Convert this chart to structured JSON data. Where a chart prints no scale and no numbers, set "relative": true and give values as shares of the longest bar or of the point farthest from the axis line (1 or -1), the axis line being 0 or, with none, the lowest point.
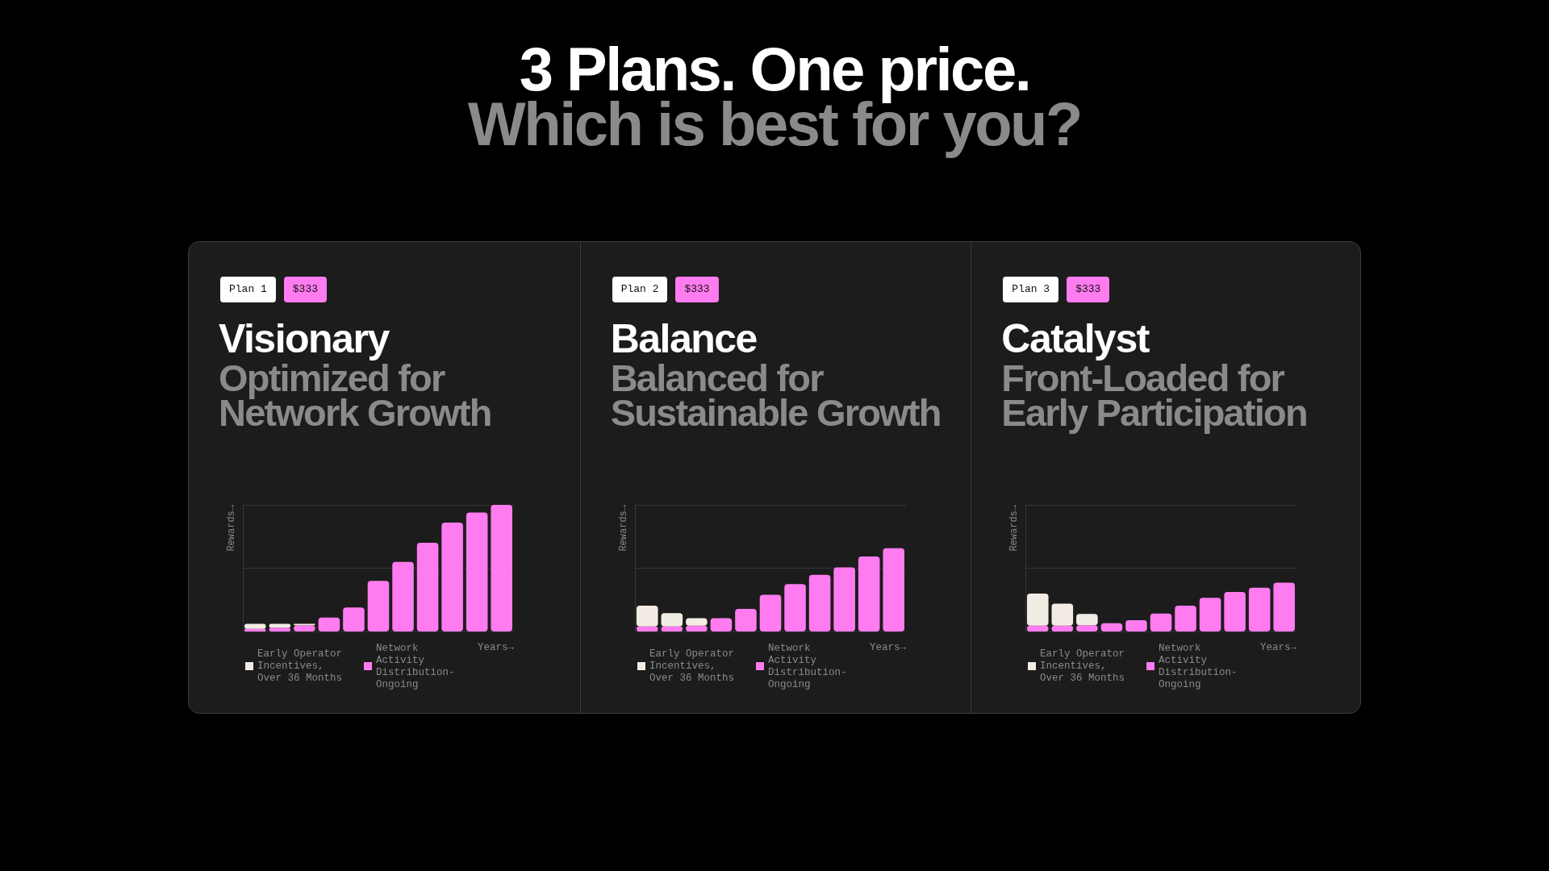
{
  "chart_data": [
    {
      "type": "bar",
      "title": "Visionary",
      "subtitle": "Optimized for Network Growth",
      "xlabel": "Years→",
      "ylabel": "Rewards→",
      "annotations": [
        "3 Plans. One price.",
        "Which is best for you?",
        "Plan 1",
        "$333"
      ],
      "categories": [
        null,
        null,
        null,
        null,
        null,
        null,
        null,
        null,
        null,
        null,
        null
      ],
      "stacked": true,
      "relative": true,
      "legend": "bottom",
      "ref_lines": [
        {
          "axis": "y",
          "value": 0.5,
          "color": "#363636"
        },
        {
          "axis": "y",
          "value": 1.0,
          "color": "#363636"
        }
      ],
      "series": [
        {
          "name": "Network Activity Distribution-Ongoing",
          "color": "#ff7bf0",
          "values": [
            0.02,
            0.03,
            0.05,
            0.11,
            0.19,
            0.4,
            0.55,
            0.7,
            0.86,
            0.94,
            1.0
          ]
        },
        {
          "name": "Early Operator Incentives, Over 36 Months",
          "color": "#f3ece4",
          "values": [
            0.04,
            0.03,
            0.01,
            null,
            null,
            null,
            null,
            null,
            null,
            null,
            null
          ]
        }
      ]
    },
    {
      "type": "bar",
      "title": "Balance",
      "subtitle": "Balanced for Sustainable Growth",
      "xlabel": "Years→",
      "ylabel": "Rewards→",
      "annotations": [
        "Plan 2",
        "$333"
      ],
      "categories": [
        null,
        null,
        null,
        null,
        null,
        null,
        null,
        null,
        null,
        null,
        null
      ],
      "stacked": true,
      "relative": true,
      "legend": "bottom",
      "ref_lines": [
        {
          "axis": "y",
          "value": 0.76,
          "color": "#363636"
        },
        {
          "axis": "y",
          "value": 1.52,
          "color": "#363636"
        }
      ],
      "series": [
        {
          "name": "Network Activity Distribution-Ongoing",
          "color": "#ff7bf0",
          "values": [
            0.06,
            0.06,
            0.07,
            0.16,
            0.27,
            0.44,
            0.57,
            0.68,
            0.77,
            0.9,
            1.0
          ]
        },
        {
          "name": "Early Operator Incentives, Over 36 Months",
          "color": "#f3ece4",
          "values": [
            0.25,
            0.16,
            0.09,
            null,
            null,
            null,
            null,
            null,
            null,
            null,
            null
          ]
        }
      ]
    },
    {
      "type": "bar",
      "title": "Catalyst",
      "subtitle": "Front-Loaded for Early Participation",
      "xlabel": "Years→",
      "ylabel": "Rewards→",
      "annotations": [
        "Plan 3",
        "$333"
      ],
      "categories": [
        null,
        null,
        null,
        null,
        null,
        null,
        null,
        null,
        null,
        null,
        null
      ],
      "stacked": true,
      "relative": true,
      "legend": "bottom",
      "ref_lines": [
        {
          "axis": "y",
          "value": 1.3,
          "color": "#363636"
        },
        {
          "axis": "y",
          "value": 2.6,
          "color": "#363636"
        }
      ],
      "series": [
        {
          "name": "Network Activity Distribution-Ongoing",
          "color": "#ff7bf0",
          "values": [
            0.12,
            0.12,
            0.13,
            0.17,
            0.23,
            0.37,
            0.53,
            0.69,
            0.81,
            0.9,
            1.0
          ]
        },
        {
          "name": "Early Operator Incentives, Over 36 Months",
          "color": "#f3ece4",
          "values": [
            0.66,
            0.45,
            0.23,
            null,
            null,
            null,
            null,
            null,
            null,
            null,
            null
          ]
        }
      ]
    }
  ]
}
